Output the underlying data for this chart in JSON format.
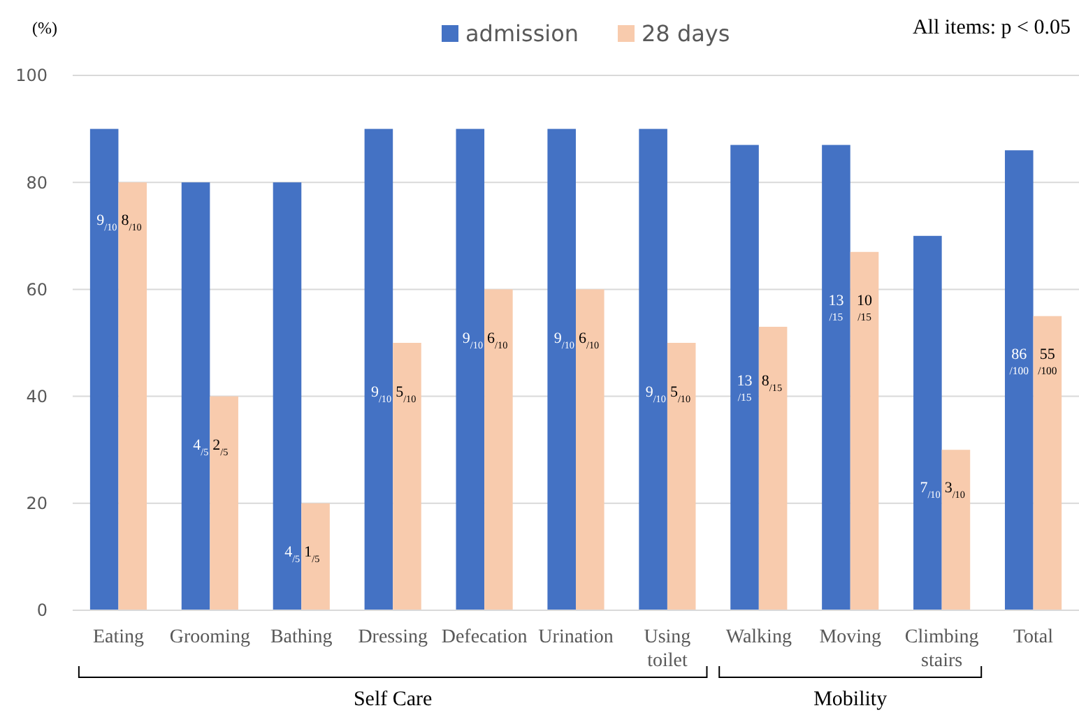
{
  "chart_data": {
    "type": "bar",
    "ylabel": "(%)",
    "categories": [
      "Eating",
      "Grooming",
      "Bathing",
      "Dressing",
      "Defecation",
      "Urination",
      "Using toilet",
      "Walking",
      "Moving",
      "Climbing stairs",
      "Total"
    ],
    "series": [
      {
        "name": "admission",
        "color": "#4472c4",
        "values": [
          90,
          80,
          80,
          90,
          90,
          90,
          90,
          87,
          87,
          70,
          86
        ]
      },
      {
        "name": "28 days",
        "color": "#f8cbad",
        "values": [
          80,
          40,
          20,
          50,
          60,
          60,
          50,
          53,
          67,
          30,
          55
        ]
      }
    ],
    "ylim": [
      0,
      100
    ],
    "yticks": [
      0,
      20,
      40,
      60,
      80,
      100
    ],
    "grid": "y",
    "legend": "top",
    "annotations": [
      "All items:  p < 0.05",
      "Self Care",
      "Mobility",
      {
        "text": "9$_{/10}$",
        "x": "Eating",
        "y": 72
      },
      {
        "text": "8$_{/10}$",
        "x": "Eating",
        "y": 72
      },
      {
        "text": "4$_{/5}$",
        "x": "Grooming",
        "y": 30
      },
      {
        "text": "2$_{/5}$",
        "x": "Grooming",
        "y": 30
      },
      {
        "text": "4$_{/5}$",
        "x": "Bathing",
        "y": 10
      },
      {
        "text": "1$_{/5}$",
        "x": "Bathing",
        "y": 10
      },
      {
        "text": "9$_{/10}$",
        "x": "Dressing",
        "y": 40
      },
      {
        "text": "5$_{/10}$",
        "x": "Dressing",
        "y": 40
      },
      {
        "text": "9$_{/10}$",
        "x": "Defecation",
        "y": 50
      },
      {
        "text": "6$_{/10}$",
        "x": "Defecation",
        "y": 50
      },
      {
        "text": "9$_{/10}$",
        "x": "Urination",
        "y": 50
      },
      {
        "text": "6$_{/10}$",
        "x": "Urination",
        "y": 50
      },
      {
        "text": "9$_{/10}$",
        "x": "Using toilet",
        "y": 40
      },
      {
        "text": "5$_{/10}$",
        "x": "Using toilet",
        "y": 40
      },
      {
        "text": "13$_{/15}$",
        "x": "Walking",
        "y": 42
      },
      {
        "text": "8$_{/15}$",
        "x": "Walking",
        "y": 42
      },
      {
        "text": "13$_{/15}$",
        "x": "Moving",
        "y": 57
      },
      {
        "text": "10$_{/15}$",
        "x": "Moving",
        "y": 57
      },
      {
        "text": "7$_{/10}$",
        "x": "Climbing stairs",
        "y": 22
      },
      {
        "text": "3$_{/10}$",
        "x": "Climbing stairs",
        "y": 22
      },
      {
        "text": "86$_{/100}$",
        "x": "Total",
        "y": 47
      },
      {
        "text": "55$_{/100}$",
        "x": "Total",
        "y": 47
      }
    ]
  }
}
